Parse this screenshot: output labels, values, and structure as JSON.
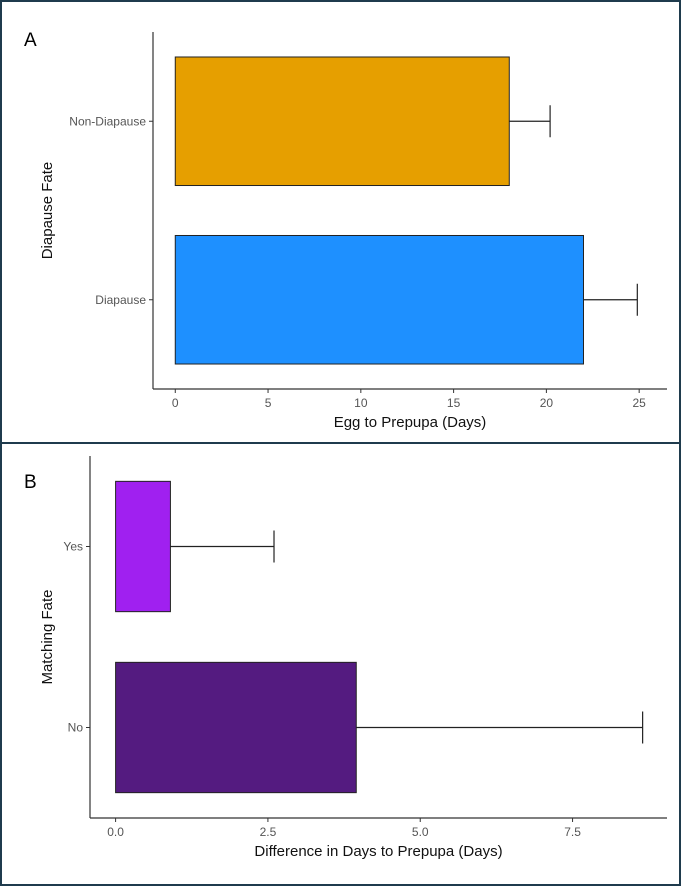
{
  "chart_data": [
    {
      "panel": "A",
      "type": "bar",
      "orientation": "horizontal",
      "categories": [
        "Diapause",
        "Non-Diapause"
      ],
      "values": [
        22.0,
        18.0
      ],
      "errors": [
        2.9,
        2.2
      ],
      "colors": [
        "#1e90ff",
        "#e69f00"
      ],
      "xlabel": "Egg to Prepupa (Days)",
      "ylabel": "Diapause Fate",
      "xlim": [
        -1.2,
        26.5
      ],
      "xticks": [
        0,
        5,
        10,
        15,
        20,
        25
      ],
      "xtick_labels": [
        "0",
        "5",
        "10",
        "15",
        "20",
        "25"
      ],
      "grid": false
    },
    {
      "panel": "B",
      "type": "bar",
      "orientation": "horizontal",
      "categories": [
        "No",
        "Yes"
      ],
      "values": [
        3.95,
        0.9
      ],
      "errors": [
        4.7,
        1.7
      ],
      "colors": [
        "#541b80",
        "#a020f0"
      ],
      "xlabel": "Difference in Days to Prepupa (Days)",
      "ylabel": "Matching Fate",
      "xlim": [
        -0.42,
        9.05
      ],
      "xticks": [
        0,
        2.5,
        5,
        7.5
      ],
      "xtick_labels": [
        "0.0",
        "2.5",
        "5.0",
        "7.5"
      ],
      "grid": false
    }
  ]
}
